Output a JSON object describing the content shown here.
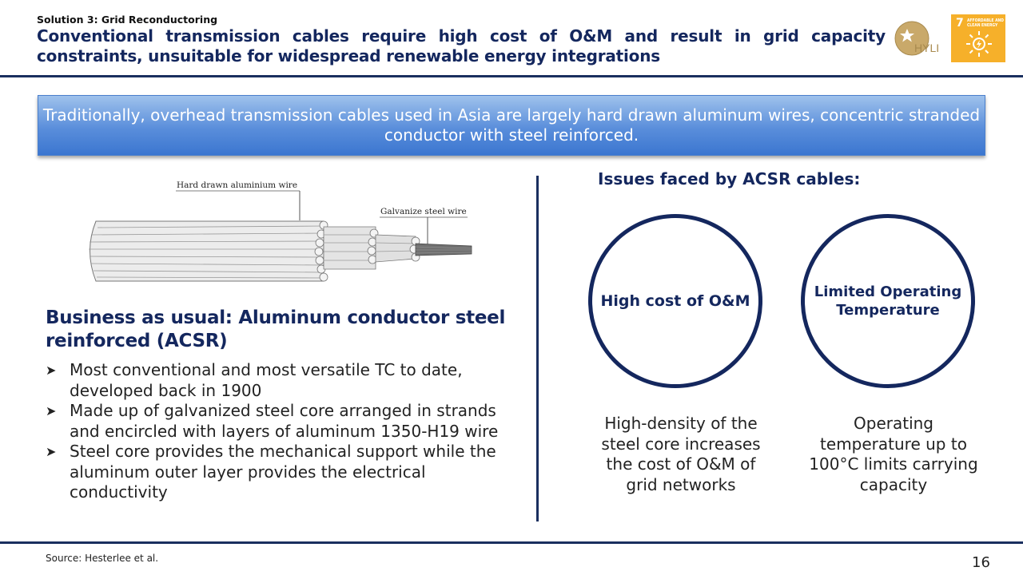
{
  "header": {
    "kicker": "Solution 3: Grid Reconductoring",
    "title": "Conventional transmission cables require high cost of O&M and result in grid capacity constraints, unsuitable for widespread renewable energy integrations",
    "logo_text": "HYLI",
    "sdg_number": "7",
    "sdg_label_line1": "AFFORDABLE AND",
    "sdg_label_line2": "CLEAN ENERGY"
  },
  "banner": {
    "text": "Traditionally, overhead transmission cables used in Asia are largely hard drawn aluminum wires, concentric stranded conductor with steel reinforced."
  },
  "diagram": {
    "label_aluminium": "Hard drawn aluminium wire",
    "label_steel": "Galvanize steel wire"
  },
  "left": {
    "title": "Business as usual: Aluminum conductor steel reinforced (ACSR)",
    "bullets": [
      "Most conventional and most versatile TC to date, developed back in 1900",
      "Made up of galvanized steel core arranged in strands and encircled with layers of aluminum 1350-H19 wire",
      "Steel core provides the mechanical support while the aluminum outer layer provides the electrical conductivity"
    ]
  },
  "right": {
    "title": "Issues faced by ACSR cables:",
    "issues": [
      {
        "label": "High cost of O&M",
        "description": "High-density of the steel core increases the cost of O&M of grid networks"
      },
      {
        "label": "Limited Operating Temperature",
        "description": "Operating temperature up to 100°C limits carrying capacity"
      }
    ]
  },
  "footer": {
    "source": "Source: Hesterlee et al.",
    "page": "16"
  },
  "colors": {
    "navy": "#14275e",
    "banner_blue": "#4a7fd3",
    "sdg_orange": "#f6b02a",
    "logo_gold": "#b8985a"
  }
}
